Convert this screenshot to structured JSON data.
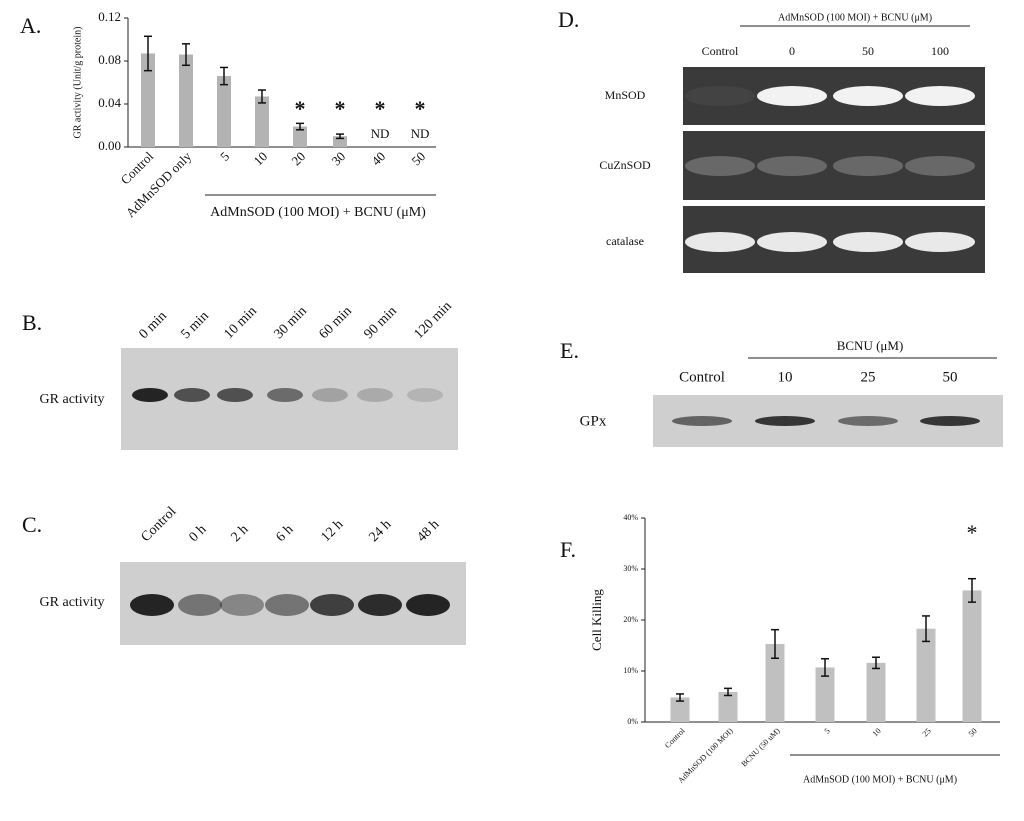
{
  "chart_data": [
    {
      "type": "bar",
      "panel": "A.",
      "ylabel": "GR activity (Unit/g protein)",
      "categories": [
        "Control",
        "AdMnSOD only",
        "5",
        "10",
        "20",
        "30",
        "40",
        "50"
      ],
      "values": [
        0.087,
        0.086,
        0.066,
        0.047,
        0.019,
        0.01,
        null,
        null
      ],
      "errors": [
        0.016,
        0.01,
        0.008,
        0.006,
        0.003,
        0.002,
        null,
        null
      ],
      "significance": [
        null,
        null,
        null,
        null,
        "*",
        "*",
        "*",
        "*"
      ],
      "nd_labels": [
        null,
        null,
        null,
        null,
        null,
        null,
        "ND",
        "ND"
      ],
      "group_label": "AdMnSOD (100 MOI) + BCNU (μM)",
      "color": "#b3b3b3",
      "ylim": [
        0,
        0.12
      ],
      "yticks": [
        {
          "value": 0,
          "label": "0.00"
        },
        {
          "value": 0.04,
          "label": "0.04"
        },
        {
          "value": 0.08,
          "label": "0.08"
        },
        {
          "value": 0.12,
          "label": "0.12"
        }
      ]
    },
    {
      "type": "bar",
      "panel": "F.",
      "ylabel": "Cell Killing",
      "categories": [
        "Control",
        "AdMnSOD (100 MOI)",
        "BCNU (50 uM)",
        "5",
        "10",
        "25",
        "50"
      ],
      "values": [
        4.8,
        5.9,
        15.3,
        10.7,
        11.6,
        18.3,
        25.8
      ],
      "errors": [
        0.7,
        0.7,
        2.8,
        1.7,
        1.1,
        2.5,
        2.3
      ],
      "significance": [
        null,
        null,
        null,
        null,
        null,
        null,
        "*"
      ],
      "group_label": "AdMnSOD (100 MOI) + BCNU (μM)",
      "color": "#c0c0c0",
      "ylim": [
        0,
        40
      ],
      "yticks": [
        {
          "value": 0,
          "label": "0%"
        },
        {
          "value": 10,
          "label": "10%"
        },
        {
          "value": 20,
          "label": "20%"
        },
        {
          "value": 30,
          "label": "30%"
        },
        {
          "value": 40,
          "label": "40%"
        }
      ]
    }
  ],
  "blots": [
    {
      "panel": "B.",
      "lanes": [
        "0 min",
        "5 min",
        "10 min",
        "30 min",
        "60 min",
        "90 min",
        "120 min"
      ],
      "rows": [
        "GR activity"
      ]
    },
    {
      "panel": "C.",
      "lanes": [
        "Control",
        "0 h",
        "2 h",
        "6 h",
        "12 h",
        "24 h",
        "48 h"
      ],
      "rows": [
        "GR activity"
      ]
    },
    {
      "panel": "D.",
      "header": "AdMnSOD (100 MOI) + BCNU (μM)",
      "lanes": [
        "Control",
        "0",
        "50",
        "100"
      ],
      "rows": [
        "MnSOD",
        "CuZnSOD",
        "catalase"
      ]
    },
    {
      "panel": "E.",
      "header": "BCNU (μM)",
      "lanes": [
        "Control",
        "10",
        "25",
        "50"
      ],
      "rows": [
        "GPx"
      ]
    }
  ]
}
